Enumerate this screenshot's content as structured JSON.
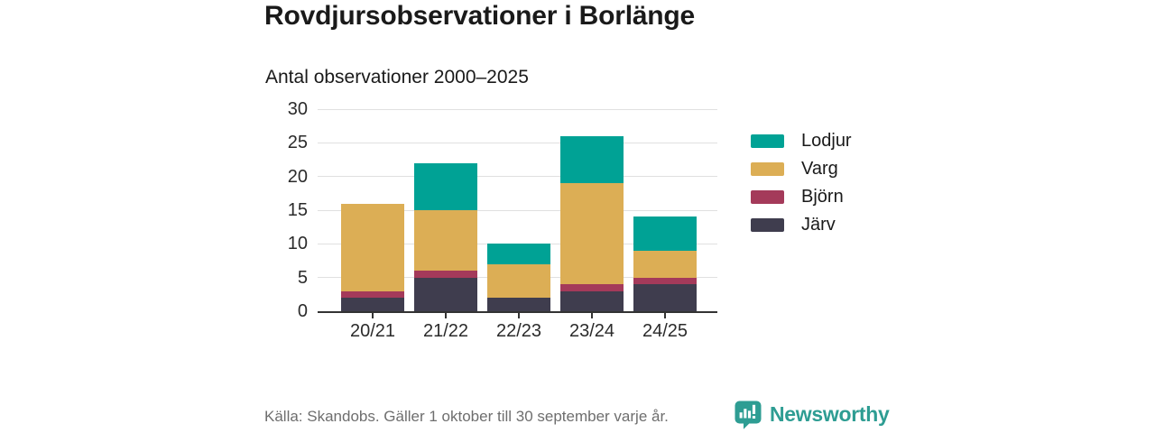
{
  "header": {
    "title": "Rovdjursobservationer i Borlänge",
    "subtitle": "Antal observationer 2000–2025"
  },
  "chart_data": {
    "type": "bar",
    "stacked": true,
    "title": "Rovdjursobservationer i Borlänge",
    "subtitle": "Antal observationer 2000–2025",
    "categories": [
      "20/21",
      "21/22",
      "22/23",
      "23/24",
      "24/25"
    ],
    "series": [
      {
        "name": "Järv",
        "color": "#3f3d4e",
        "values": [
          2,
          5,
          2,
          3,
          4
        ]
      },
      {
        "name": "Björn",
        "color": "#a43a5a",
        "values": [
          1,
          1,
          0,
          1,
          1
        ]
      },
      {
        "name": "Varg",
        "color": "#dcae55",
        "values": [
          13,
          9,
          5,
          15,
          4
        ]
      },
      {
        "name": "Lodjur",
        "color": "#00a295",
        "values": [
          0,
          7,
          3,
          7,
          5
        ]
      }
    ],
    "stack_order": "bottom-to-top",
    "totals": [
      16,
      22,
      10,
      26,
      14
    ],
    "xlabel": "",
    "ylabel": "",
    "ylim": [
      0,
      30
    ],
    "yticks": [
      0,
      5,
      10,
      15,
      20,
      25,
      30
    ],
    "grid": true,
    "legend_position": "right",
    "legend": [
      "Lodjur",
      "Varg",
      "Björn",
      "Järv"
    ]
  },
  "footer": {
    "source": "Källa: Skandobs. Gäller 1 oktober till 30 september varje år.",
    "brand": "Newsworthy"
  },
  "colors": {
    "lodjur": "#00a295",
    "varg": "#dcae55",
    "bjorn": "#a43a5a",
    "jarv": "#3f3d4e",
    "grid": "#e0e0e0",
    "axis": "#333333",
    "text": "#1a1a1a",
    "muted": "#6e6e6e",
    "brand": "#2e9d93"
  }
}
